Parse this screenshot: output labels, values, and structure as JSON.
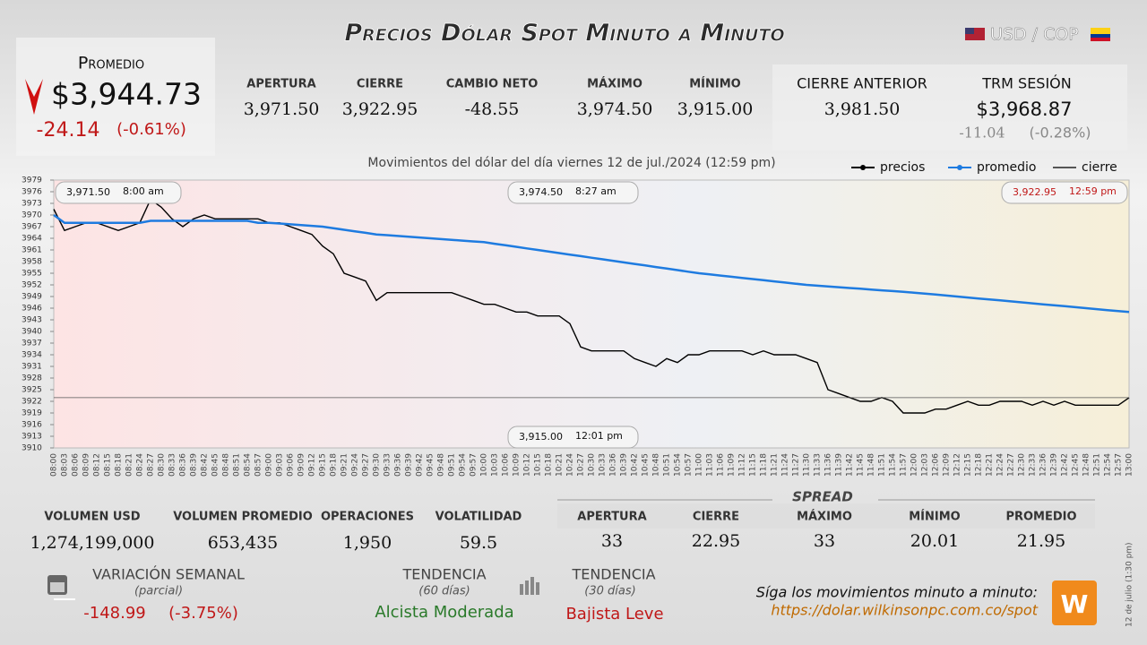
{
  "header": {
    "title": "Precios Dólar Spot Minuto a Minuto",
    "pair": "USD / COP"
  },
  "promedio": {
    "label": "Promedio",
    "value": "$3,944.73",
    "change": "-24.14",
    "change_pct": "(-0.61%)"
  },
  "session": [
    {
      "label": "APERTURA",
      "value": "3,971.50"
    },
    {
      "label": "CIERRE",
      "value": "3,922.95"
    },
    {
      "label": "CAMBIO NETO",
      "value": "-48.55"
    },
    {
      "label": "MÁXIMO",
      "value": "3,974.50"
    },
    {
      "label": "MÍNIMO",
      "value": "3,915.00"
    }
  ],
  "previous": {
    "label": "CIERRE ANTERIOR",
    "value": "3,981.50"
  },
  "trm": {
    "label": "TRM SESIÓN",
    "value": "$3,968.87",
    "change": "-11.04",
    "change_pct": "(-0.28%)"
  },
  "chart_data": {
    "type": "line",
    "title": "Movimientos del dólar del día viernes 12 de jul./2024 (12:59 pm)",
    "x": [
      "08:00",
      "08:03",
      "08:06",
      "08:09",
      "08:12",
      "08:15",
      "08:18",
      "08:21",
      "08:24",
      "08:27",
      "08:30",
      "08:33",
      "08:36",
      "08:39",
      "08:42",
      "08:45",
      "08:48",
      "08:51",
      "08:54",
      "08:57",
      "09:00",
      "09:03",
      "09:06",
      "09:09",
      "09:12",
      "09:15",
      "09:18",
      "09:21",
      "09:24",
      "09:27",
      "09:30",
      "09:33",
      "09:36",
      "09:39",
      "09:42",
      "09:45",
      "09:48",
      "09:51",
      "09:54",
      "09:57",
      "10:00",
      "10:03",
      "10:06",
      "10:09",
      "10:12",
      "10:15",
      "10:18",
      "10:21",
      "10:24",
      "10:27",
      "10:30",
      "10:33",
      "10:36",
      "10:39",
      "10:42",
      "10:45",
      "10:48",
      "10:51",
      "10:54",
      "10:57",
      "11:00",
      "11:03",
      "11:06",
      "11:09",
      "11:12",
      "11:15",
      "11:18",
      "11:21",
      "11:24",
      "11:27",
      "11:30",
      "11:33",
      "11:36",
      "11:39",
      "11:42",
      "11:45",
      "11:48",
      "11:51",
      "11:54",
      "11:57",
      "12:00",
      "12:03",
      "12:06",
      "12:09",
      "12:12",
      "12:15",
      "12:18",
      "12:21",
      "12:24",
      "12:27",
      "12:30",
      "12:33",
      "12:36",
      "12:39",
      "12:42",
      "12:45",
      "12:48",
      "12:51",
      "12:54",
      "12:57",
      "13:00"
    ],
    "series": [
      {
        "name": "precios",
        "color": "#000000",
        "values": [
          3971.5,
          3966,
          3967,
          3968,
          3968,
          3967,
          3966,
          3967,
          3968,
          3974,
          3972,
          3969,
          3967,
          3969,
          3970,
          3969,
          3969,
          3969,
          3969,
          3969,
          3968,
          3968,
          3967,
          3966,
          3965,
          3962,
          3960,
          3955,
          3954,
          3953,
          3948,
          3950,
          3950,
          3950,
          3950,
          3950,
          3950,
          3950,
          3949,
          3948,
          3947,
          3947,
          3946,
          3945,
          3945,
          3944,
          3944,
          3944,
          3942,
          3936,
          3935,
          3935,
          3935,
          3935,
          3933,
          3932,
          3931,
          3933,
          3932,
          3934,
          3934,
          3935,
          3935,
          3935,
          3935,
          3934,
          3935,
          3934,
          3934,
          3934,
          3933,
          3932,
          3925,
          3924,
          3923,
          3922,
          3922,
          3923,
          3922,
          3919,
          3919,
          3919,
          3920,
          3920,
          3921,
          3922,
          3921,
          3921,
          3922,
          3922,
          3922,
          3921,
          3922,
          3921,
          3922,
          3921,
          3921,
          3921,
          3921,
          3921,
          3922.95
        ]
      },
      {
        "name": "promedio",
        "color": "#1e7be0",
        "values": [
          3970,
          3968,
          3968,
          3968,
          3968,
          3968,
          3968,
          3968,
          3968,
          3968.5,
          3968.5,
          3968.5,
          3968.5,
          3968.5,
          3968.5,
          3968.5,
          3968.5,
          3968.5,
          3968.5,
          3968,
          3968,
          3967.8,
          3967.6,
          3967.4,
          3967.2,
          3967,
          3966.6,
          3966.2,
          3965.8,
          3965.4,
          3965,
          3964.8,
          3964.6,
          3964.4,
          3964.2,
          3964,
          3963.8,
          3963.6,
          3963.4,
          3963.2,
          3963,
          3962.6,
          3962.2,
          3961.8,
          3961.4,
          3961,
          3960.6,
          3960.2,
          3959.8,
          3959.4,
          3959,
          3958.6,
          3958.2,
          3957.8,
          3957.4,
          3957,
          3956.6,
          3956.2,
          3955.8,
          3955.4,
          3955,
          3954.7,
          3954.4,
          3954.1,
          3953.8,
          3953.5,
          3953.2,
          3952.9,
          3952.6,
          3952.3,
          3952,
          3951.8,
          3951.6,
          3951.4,
          3951.2,
          3951,
          3950.8,
          3950.6,
          3950.4,
          3950.2,
          3950,
          3949.75,
          3949.5,
          3949.25,
          3949,
          3948.75,
          3948.5,
          3948.25,
          3948,
          3947.75,
          3947.5,
          3947.25,
          3947,
          3946.75,
          3946.5,
          3946.25,
          3946,
          3945.75,
          3945.5,
          3945.25,
          3945
        ]
      },
      {
        "name": "cierre",
        "color": "#555555",
        "hline": 3922.95
      }
    ],
    "annotations": [
      {
        "value": "3,971.50",
        "time": "8:00 am"
      },
      {
        "value": "3,974.50",
        "time": "8:27 am"
      },
      {
        "value": "3,922.95",
        "time": "12:59 pm"
      },
      {
        "value": "3,915.00",
        "time": "12:01 pm"
      }
    ],
    "ylim": [
      3910,
      3979
    ],
    "yticks": [
      3910,
      3913,
      3916,
      3919,
      3922,
      3925,
      3928,
      3931,
      3934,
      3937,
      3940,
      3943,
      3946,
      3949,
      3952,
      3955,
      3958,
      3961,
      3964,
      3967,
      3970,
      3973,
      3976,
      3979
    ]
  },
  "stats": [
    {
      "label": "VOLUMEN USD",
      "value": "1,274,199,000"
    },
    {
      "label": "VOLUMEN PROMEDIO",
      "value": "653,435"
    },
    {
      "label": "OPERACIONES",
      "value": "1,950"
    },
    {
      "label": "VOLATILIDAD",
      "value": "59.5"
    }
  ],
  "spread": {
    "title": "SPREAD",
    "items": [
      {
        "label": "APERTURA",
        "value": "33"
      },
      {
        "label": "CIERRE",
        "value": "22.95"
      },
      {
        "label": "MÁXIMO",
        "value": "33"
      },
      {
        "label": "MÍNIMO",
        "value": "20.01"
      },
      {
        "label": "PROMEDIO",
        "value": "21.95"
      }
    ]
  },
  "weekly": {
    "label": "VARIACIÓN SEMANAL",
    "sub": "(parcial)",
    "change": "-148.99",
    "change_pct": "(-3.75%)"
  },
  "trend60": {
    "label": "TENDENCIA",
    "sub": "(60 días)",
    "value": "Alcista Moderada"
  },
  "trend30": {
    "label": "TENDENCIA",
    "sub": "(30 días)",
    "value": "Bajista Leve"
  },
  "footer": {
    "text": "Síga los movimientos minuto a minuto:",
    "url": "https://dolar.wilkinsonpc.com.co/spot",
    "side": "12 de julio (1:30 pm)"
  }
}
